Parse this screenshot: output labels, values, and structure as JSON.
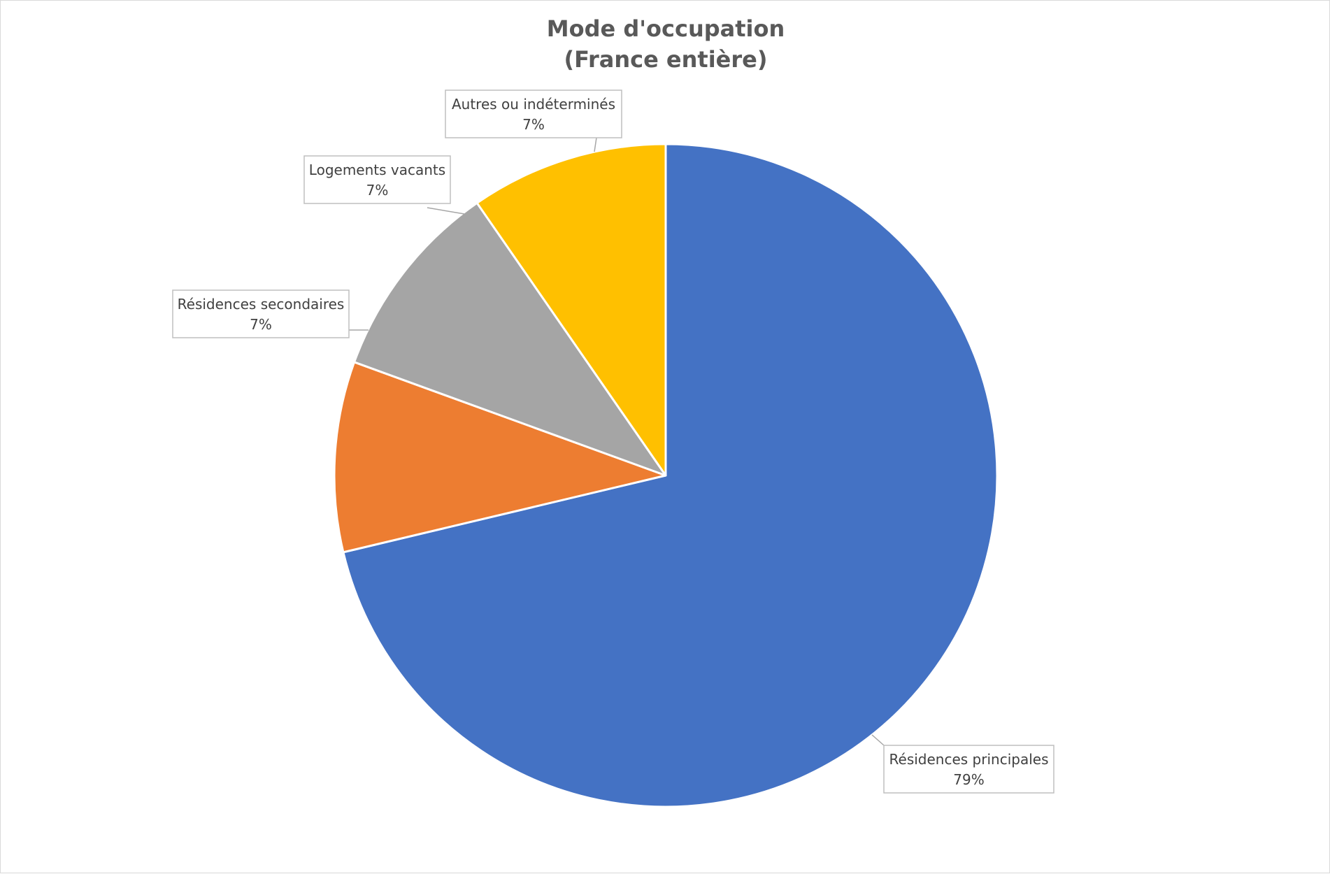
{
  "chart_data": {
    "type": "pie",
    "title": [
      "Mode d'occupation",
      "(France entière)"
    ],
    "categories": [
      "Résidences principales",
      "Résidences secondaires",
      "Logements vacants",
      "Autres ou indéterminés"
    ],
    "values": [
      79,
      7,
      7,
      7
    ],
    "labels": [
      "79%",
      "7%",
      "7%",
      "7%"
    ],
    "colors": [
      "#4472C4",
      "#ED7D31",
      "#A5A5A5",
      "#FFC000"
    ],
    "start_angle": "12 o'clock",
    "direction": "clockwise",
    "data_labels": "callouts with category name and percentage",
    "legend": "none"
  }
}
